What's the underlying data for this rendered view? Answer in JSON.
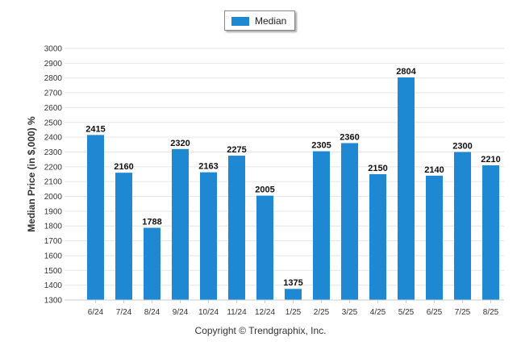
{
  "chart_data": {
    "type": "bar",
    "categories": [
      "6/24",
      "7/24",
      "8/24",
      "9/24",
      "10/24",
      "11/24",
      "12/24",
      "1/25",
      "2/25",
      "3/25",
      "4/25",
      "5/25",
      "6/25",
      "7/25",
      "8/25"
    ],
    "series": [
      {
        "name": "Median",
        "values": [
          2415,
          2160,
          1788,
          2320,
          2163,
          2275,
          2005,
          1375,
          2305,
          2360,
          2150,
          2804,
          2140,
          2300,
          2210
        ],
        "color": "#1e88d2"
      }
    ],
    "ylabel": "Median Price (in $,000) %",
    "ylim": [
      1300,
      3000
    ],
    "yticks": [
      1300,
      1400,
      1500,
      1600,
      1700,
      1800,
      1900,
      2000,
      2100,
      2200,
      2300,
      2400,
      2500,
      2600,
      2700,
      2800,
      2900,
      3000
    ],
    "grid": true,
    "legend_position": "top-center",
    "data_labels": true
  },
  "footer": {
    "copyright": "Copyright © Trendgraphix, Inc."
  }
}
